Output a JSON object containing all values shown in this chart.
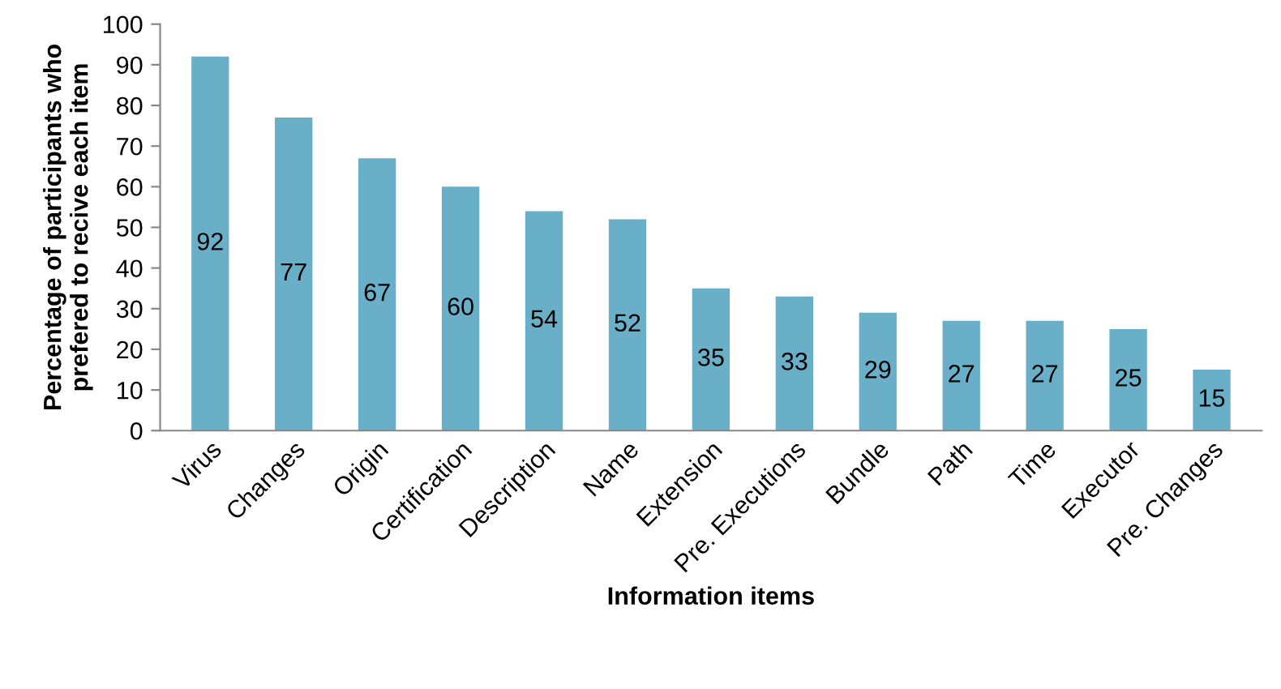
{
  "chart_data": {
    "type": "bar",
    "xlabel": "Information items",
    "ylabel": "Percentage of participants who\nprefered to recive each item",
    "categories": [
      "Virus",
      "Changes",
      "Origin",
      "Certification",
      "Description",
      "Name",
      "Extension",
      "Pre. Executions",
      "Bundle",
      "Path",
      "Time",
      "Executor",
      "Pre. Changes"
    ],
    "values": [
      92,
      77,
      67,
      60,
      54,
      52,
      35,
      33,
      29,
      27,
      27,
      25,
      15
    ],
    "color": "#6aafc8",
    "ylim": [
      0,
      100
    ],
    "yticks": [
      0,
      10,
      20,
      30,
      40,
      50,
      60,
      70,
      80,
      90,
      100
    ],
    "data_labels": true,
    "grid": false,
    "legend": false
  }
}
